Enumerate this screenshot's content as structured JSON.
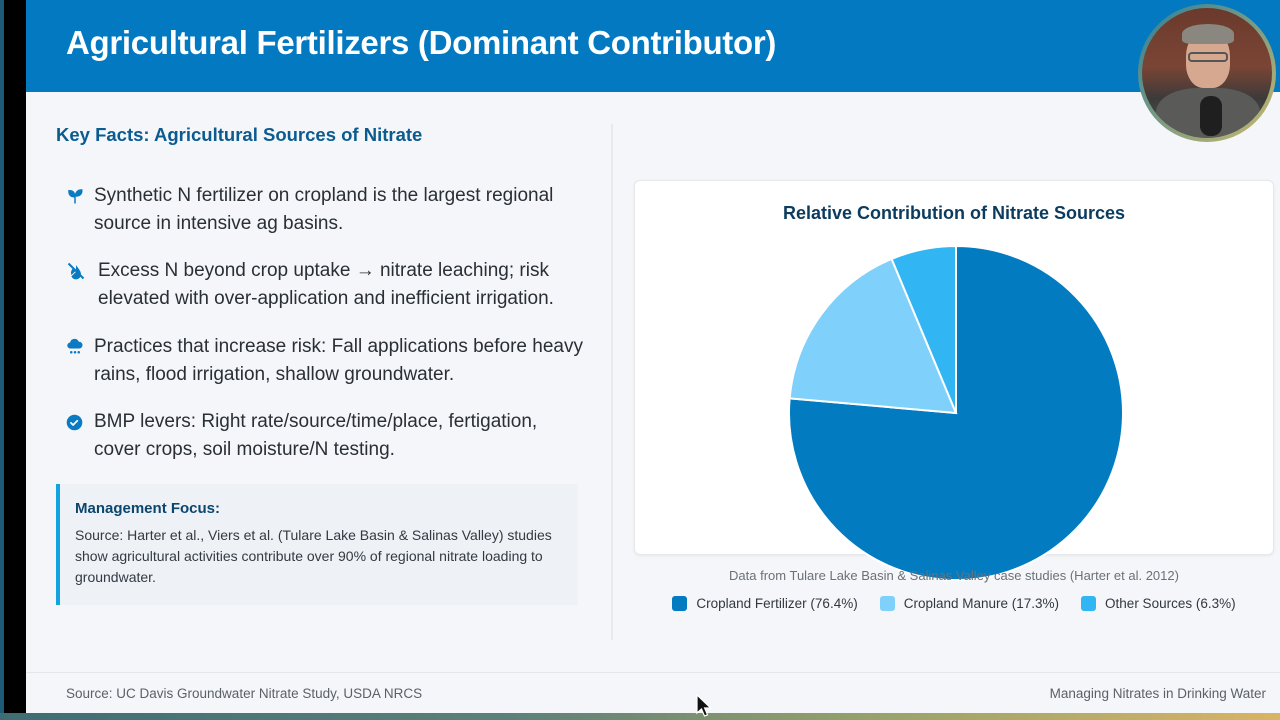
{
  "header": {
    "title": "Agricultural Fertilizers (Dominant Contributor)"
  },
  "left": {
    "section_title": "Key Facts: Agricultural Sources of Nitrate",
    "facts": [
      {
        "icon": "seedling-icon",
        "text": "Synthetic N fertilizer on cropland is the largest regional source in intensive ag basins."
      },
      {
        "icon": "water-slash-icon",
        "text": "Excess N beyond crop uptake → nitrate leaching; risk elevated with over-application and inefficient irrigation."
      },
      {
        "icon": "cloud-rain-icon",
        "text": "Practices that increase risk: Fall applications before heavy rains, flood irrigation, shallow groundwater."
      },
      {
        "icon": "check-circle-icon",
        "text": "BMP levers: Right rate/source/time/place, fertigation, cover crops, soil moisture/N testing."
      }
    ],
    "focus": {
      "title": "Management Focus:",
      "text": "Source: Harter et al., Viers et al. (Tulare Lake Basin & Salinas Valley) studies show agricultural activities contribute over 90% of regional nitrate loading to groundwater."
    }
  },
  "colors": {
    "header_bg": "#0279c0",
    "accent": "#0b5b8f",
    "icon": "#0a7bc2",
    "focus_border": "#12a3e0"
  },
  "chart_data": {
    "type": "pie",
    "title": "Relative Contribution of Nitrate Sources",
    "categories": [
      "Cropland Fertilizer",
      "Cropland Manure",
      "Other Sources"
    ],
    "values": [
      76.4,
      17.3,
      6.3
    ],
    "colors": [
      "#027bc1",
      "#7fd0fa",
      "#32b6f3"
    ],
    "start_angle": "12 o'clock, clockwise",
    "legend_position": "bottom",
    "caption": "Data from Tulare Lake Basin & Salinas Valley case studies (Harter et al. 2012)"
  },
  "legend": [
    {
      "label": "Cropland Fertilizer (76.4%)",
      "color": "#027bc1"
    },
    {
      "label": "Cropland Manure (17.3%)",
      "color": "#7fd0fa"
    },
    {
      "label": "Other Sources (6.3%)",
      "color": "#32b6f3"
    }
  ],
  "footer": {
    "source": "Source: UC Davis Groundwater Nitrate Study, USDA NRCS",
    "title": "Managing Nitrates in Drinking Water"
  }
}
